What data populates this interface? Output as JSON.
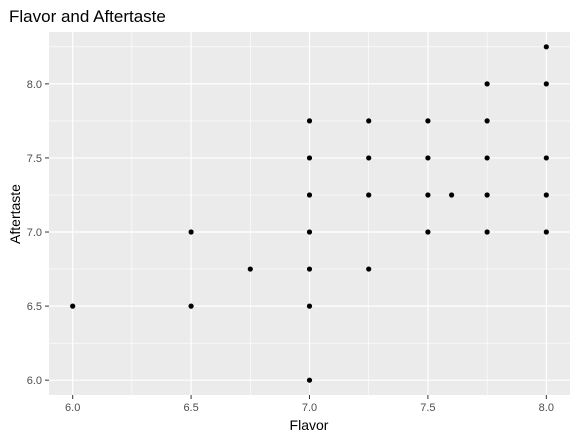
{
  "chart_data": {
    "type": "scatter",
    "title": "Flavor and Aftertaste",
    "xlabel": "Flavor",
    "ylabel": "Aftertaste",
    "xlim": [
      5.9,
      8.1
    ],
    "ylim": [
      5.9,
      8.35
    ],
    "x_ticks": [
      "6.0",
      "6.5",
      "7.0",
      "7.5",
      "8.0"
    ],
    "y_ticks": [
      "6.0",
      "6.5",
      "7.0",
      "7.5",
      "8.0"
    ],
    "grid": true,
    "panel_background": "#ebebeb",
    "grid_color": "#ffffff",
    "point_color": "#000000",
    "series": [
      {
        "points": [
          {
            "x": 6.0,
            "y": 6.5
          },
          {
            "x": 6.5,
            "y": 7.0
          },
          {
            "x": 6.5,
            "y": 6.5
          },
          {
            "x": 6.75,
            "y": 6.75
          },
          {
            "x": 7.0,
            "y": 7.75
          },
          {
            "x": 7.0,
            "y": 7.5
          },
          {
            "x": 7.0,
            "y": 7.25
          },
          {
            "x": 7.0,
            "y": 7.0
          },
          {
            "x": 7.0,
            "y": 6.75
          },
          {
            "x": 7.0,
            "y": 6.5
          },
          {
            "x": 7.0,
            "y": 6.0
          },
          {
            "x": 7.25,
            "y": 7.75
          },
          {
            "x": 7.25,
            "y": 7.5
          },
          {
            "x": 7.25,
            "y": 7.25
          },
          {
            "x": 7.25,
            "y": 6.75
          },
          {
            "x": 7.5,
            "y": 7.75
          },
          {
            "x": 7.5,
            "y": 7.5
          },
          {
            "x": 7.5,
            "y": 7.25
          },
          {
            "x": 7.5,
            "y": 7.0
          },
          {
            "x": 7.6,
            "y": 7.25
          },
          {
            "x": 7.75,
            "y": 8.0
          },
          {
            "x": 7.75,
            "y": 7.75
          },
          {
            "x": 7.75,
            "y": 7.5
          },
          {
            "x": 7.75,
            "y": 7.25
          },
          {
            "x": 7.75,
            "y": 7.0
          },
          {
            "x": 8.0,
            "y": 8.25
          },
          {
            "x": 8.0,
            "y": 8.0
          },
          {
            "x": 8.0,
            "y": 7.5
          },
          {
            "x": 8.0,
            "y": 7.25
          },
          {
            "x": 8.0,
            "y": 7.0
          }
        ]
      }
    ]
  }
}
